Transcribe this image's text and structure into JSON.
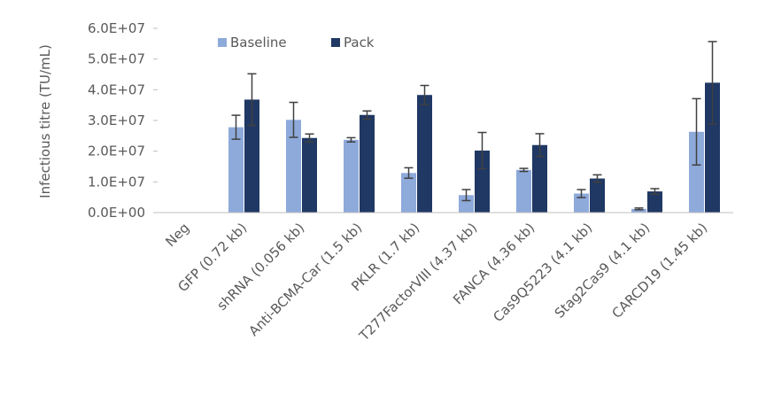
{
  "chart_data": {
    "type": "bar",
    "title": "",
    "xlabel": "",
    "ylabel": "Infectious titre (TU/mL)",
    "ylim": [
      0,
      60000000
    ],
    "yticks": [
      "0.0E+00",
      "1.0E+07",
      "2.0E+07",
      "3.0E+07",
      "4.0E+07",
      "5.0E+07",
      "6.0E+07"
    ],
    "grid": false,
    "legend_position": "top",
    "categories": [
      "Neg",
      "GFP (0.72 kb)",
      "shRNA (0.056 kb)",
      "Anti-BCMA-Car (1.5 kb)",
      "PKLR (1.7 kb)",
      "T277FactorVIII (4.37 kb)",
      "FANCA (4.36 kb)",
      "Cas9Q5223 (4.1 kb)",
      "Stag2Cas9 (4.1 kb)",
      "CARCD19 (1.45 kb)"
    ],
    "series": [
      {
        "name": "Baseline",
        "color": "#8eaadb",
        "values": [
          0,
          27800000,
          30200000,
          23700000,
          12900000,
          5700000,
          13900000,
          6200000,
          1200000,
          26300000
        ],
        "errors": [
          0,
          3900000,
          5700000,
          700000,
          1700000,
          1800000,
          500000,
          1300000,
          300000,
          10800000
        ]
      },
      {
        "name": "Pack",
        "color": "#203864",
        "values": [
          0,
          36800000,
          24300000,
          31800000,
          38300000,
          20200000,
          22000000,
          11100000,
          6900000,
          42300000
        ],
        "errors": [
          0,
          8400000,
          1300000,
          1300000,
          3100000,
          5900000,
          3700000,
          1200000,
          900000,
          13400000
        ]
      }
    ]
  }
}
